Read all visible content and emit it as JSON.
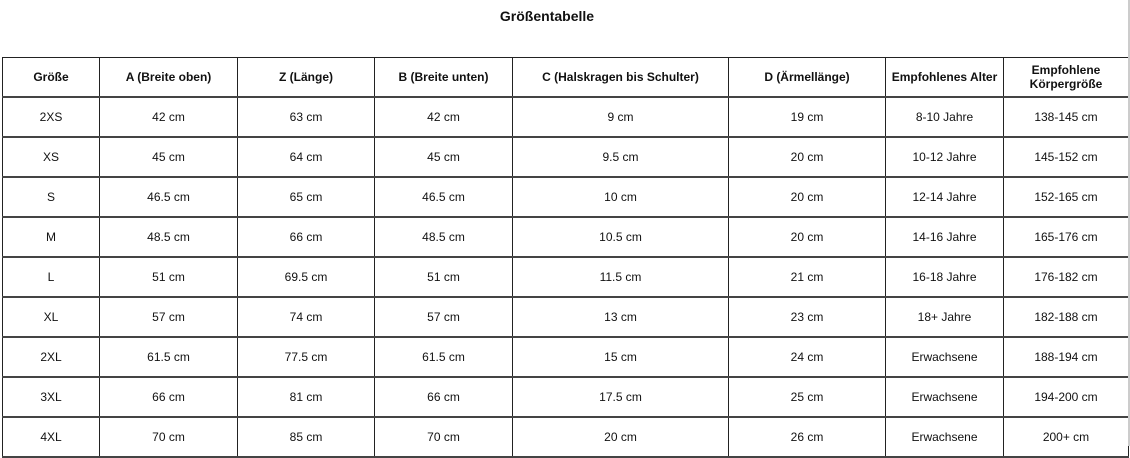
{
  "title": "Größentabelle",
  "headers": [
    "Größe",
    "A (Breite oben)",
    "Z (Länge)",
    "B (Breite unten)",
    "C (Halskragen bis Schulter)",
    "D (Ärmellänge)",
    "Empfohlenes Alter",
    "Empfohlene Körpergröße"
  ],
  "rows": [
    [
      "2XS",
      "42 cm",
      "63 cm",
      "42 cm",
      "9 cm",
      "19 cm",
      "8-10 Jahre",
      "138-145 cm"
    ],
    [
      "XS",
      "45 cm",
      "64 cm",
      "45 cm",
      "9.5 cm",
      "20 cm",
      "10-12 Jahre",
      "145-152 cm"
    ],
    [
      "S",
      "46.5 cm",
      "65 cm",
      "46.5 cm",
      "10 cm",
      "20 cm",
      "12-14 Jahre",
      "152-165 cm"
    ],
    [
      "M",
      "48.5 cm",
      "66 cm",
      "48.5 cm",
      "10.5 cm",
      "20 cm",
      "14-16 Jahre",
      "165-176 cm"
    ],
    [
      "L",
      "51 cm",
      "69.5 cm",
      "51 cm",
      "11.5 cm",
      "21 cm",
      "16-18 Jahre",
      "176-182 cm"
    ],
    [
      "XL",
      "57 cm",
      "74 cm",
      "57 cm",
      "13 cm",
      "23 cm",
      "18+ Jahre",
      "182-188 cm"
    ],
    [
      "2XL",
      "61.5 cm",
      "77.5 cm",
      "61.5 cm",
      "15 cm",
      "24 cm",
      "Erwachsene",
      "188-194 cm"
    ],
    [
      "3XL",
      "66 cm",
      "81 cm",
      "66 cm",
      "17.5 cm",
      "25 cm",
      "Erwachsene",
      "194-200 cm"
    ],
    [
      "4XL",
      "70 cm",
      "85 cm",
      "70 cm",
      "20 cm",
      "26 cm",
      "Erwachsene",
      "200+ cm"
    ]
  ]
}
